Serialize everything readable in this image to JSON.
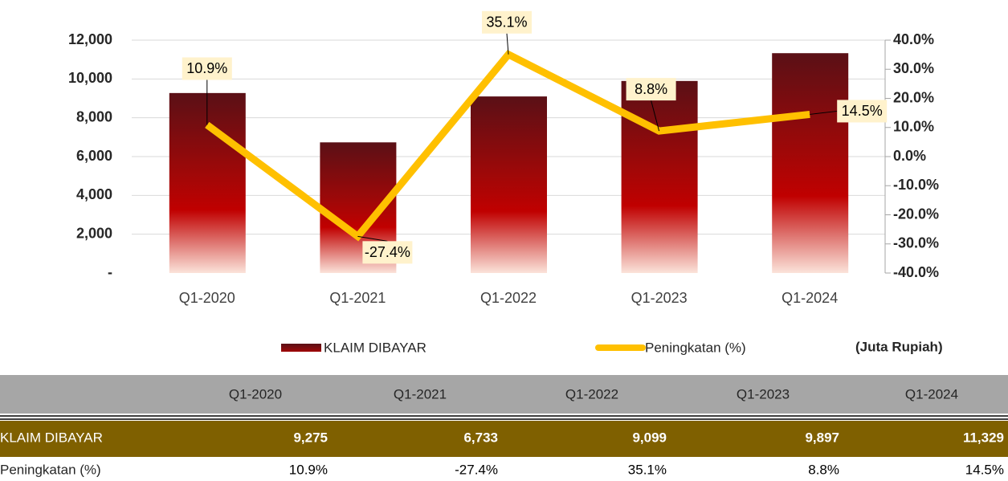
{
  "chart_data": {
    "type": "bar_line",
    "categories": [
      "Q1-2020",
      "Q1-2021",
      "Q1-2022",
      "Q1-2023",
      "Q1-2024"
    ],
    "series": [
      {
        "name": "KLAIM DIBAYAR",
        "type": "bar",
        "axis": "y",
        "color": "#c00000",
        "values": [
          9275,
          6733,
          9099,
          9897,
          11329
        ]
      },
      {
        "name": "Peningkatan (%)",
        "type": "line",
        "axis": "y2",
        "color": "#ffc000",
        "values": [
          10.9,
          -27.4,
          35.1,
          8.8,
          14.5
        ],
        "value_labels": [
          "10.9%",
          "-27.4%",
          "35.1%",
          "8.8%",
          "14.5%"
        ]
      }
    ],
    "ylim": [
      0,
      12000
    ],
    "yticks": [
      {
        "value": 0,
        "label": "-"
      },
      {
        "value": 2000,
        "label": "2,000"
      },
      {
        "value": 4000,
        "label": "4,000"
      },
      {
        "value": 6000,
        "label": "6,000"
      },
      {
        "value": 8000,
        "label": "8,000"
      },
      {
        "value": 10000,
        "label": "10,000"
      },
      {
        "value": 12000,
        "label": "12,000"
      }
    ],
    "y2lim": [
      -40,
      40
    ],
    "y2ticks": [
      {
        "value": -40,
        "label": "-40.0%"
      },
      {
        "value": -30,
        "label": "-30.0%"
      },
      {
        "value": -20,
        "label": "-20.0%"
      },
      {
        "value": -10,
        "label": "-10.0%"
      },
      {
        "value": 0,
        "label": "0.0%"
      },
      {
        "value": 10,
        "label": "10.0%"
      },
      {
        "value": 20,
        "label": "20.0%"
      },
      {
        "value": 30,
        "label": "30.0%"
      },
      {
        "value": 40,
        "label": "40.0%"
      }
    ],
    "grid": true,
    "legend": "bottom",
    "annotation": "(Juta Rupiah)"
  },
  "table": {
    "rows": [
      [
        "9,275",
        "6,733",
        "9,099",
        "9,897",
        "11,329"
      ],
      [
        "10.9%",
        "-27.4%",
        "35.1%",
        "8.8%",
        "14.5%"
      ]
    ]
  }
}
